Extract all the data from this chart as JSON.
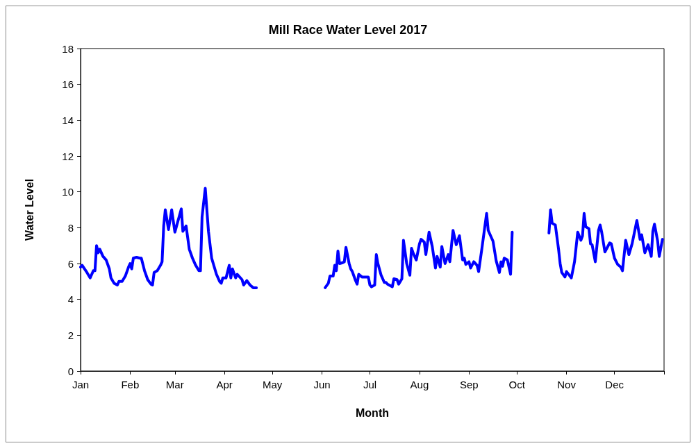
{
  "chart_data": {
    "type": "line",
    "title": "Mill Race Water Level 2017",
    "xlabel": "Month",
    "ylabel": "Water Level",
    "x": [
      "2017-01-01",
      "2017-01-02",
      "2017-01-05",
      "2017-01-07",
      "2017-01-08",
      "2017-01-09",
      "2017-01-10",
      "2017-01-11",
      "2017-01-12",
      "2017-01-13",
      "2017-01-15",
      "2017-01-17",
      "2017-01-19",
      "2017-01-20",
      "2017-01-22",
      "2017-01-24",
      "2017-01-25",
      "2017-01-27",
      "2017-01-29",
      "2017-01-31",
      "2017-02-01",
      "2017-02-02",
      "2017-02-03",
      "2017-02-05",
      "2017-02-07",
      "2017-02-08",
      "2017-02-10",
      "2017-02-12",
      "2017-02-14",
      "2017-02-15",
      "2017-02-16",
      "2017-02-18",
      "2017-02-20",
      "2017-02-21",
      "2017-02-22",
      "2017-02-23",
      "2017-02-25",
      "2017-02-27",
      "2017-03-01",
      "2017-03-05",
      "2017-03-06",
      "2017-03-08",
      "2017-03-10",
      "2017-03-12",
      "2017-03-14",
      "2017-03-16",
      "2017-03-17",
      "2017-03-18",
      "2017-03-20",
      "2017-03-22",
      "2017-03-24",
      "2017-03-27",
      "2017-03-29",
      "2017-03-30",
      "2017-03-31",
      "2017-04-02",
      "2017-04-04",
      "2017-04-05",
      "2017-04-06",
      "2017-04-08",
      "2017-04-09",
      "2017-04-12",
      "2017-04-13",
      "2017-04-15",
      "2017-04-17",
      "2017-04-19",
      "2017-04-21",
      "2017-05-11",
      "2017-06-03",
      "2017-06-05",
      "2017-06-06",
      "2017-06-08",
      "2017-06-09",
      "2017-06-10",
      "2017-06-11",
      "2017-06-12",
      "2017-06-14",
      "2017-06-15",
      "2017-06-16",
      "2017-06-18",
      "2017-06-19",
      "2017-06-20",
      "2017-06-22",
      "2017-06-23",
      "2017-06-24",
      "2017-06-26",
      "2017-06-28",
      "2017-06-30",
      "2017-07-01",
      "2017-07-02",
      "2017-07-04",
      "2017-07-05",
      "2017-07-06",
      "2017-07-08",
      "2017-07-10",
      "2017-07-11",
      "2017-07-12",
      "2017-07-15",
      "2017-07-16",
      "2017-07-18",
      "2017-07-19",
      "2017-07-21",
      "2017-07-22",
      "2017-07-24",
      "2017-07-26",
      "2017-07-27",
      "2017-07-28",
      "2017-07-30",
      "2017-08-01",
      "2017-08-02",
      "2017-08-04",
      "2017-08-05",
      "2017-08-07",
      "2017-08-09",
      "2017-08-11",
      "2017-08-12",
      "2017-08-14",
      "2017-08-15",
      "2017-08-17",
      "2017-08-19",
      "2017-08-20",
      "2017-08-22",
      "2017-08-24",
      "2017-08-26",
      "2017-08-28",
      "2017-08-29",
      "2017-08-30",
      "2017-09-01",
      "2017-09-02",
      "2017-09-04",
      "2017-09-06",
      "2017-09-07",
      "2017-09-09",
      "2017-09-12",
      "2017-09-13",
      "2017-09-16",
      "2017-09-18",
      "2017-09-20",
      "2017-09-21",
      "2017-09-22",
      "2017-09-23",
      "2017-09-25",
      "2017-09-27",
      "2017-09-28",
      "2017-10-08",
      "2017-10-21",
      "2017-10-22",
      "2017-10-23",
      "2017-10-25",
      "2017-10-27",
      "2017-10-28",
      "2017-10-29",
      "2017-10-31",
      "2017-11-01",
      "2017-11-04",
      "2017-11-06",
      "2017-11-08",
      "2017-11-10",
      "2017-11-11",
      "2017-11-12",
      "2017-11-13",
      "2017-11-15",
      "2017-11-16",
      "2017-11-17",
      "2017-11-19",
      "2017-11-21",
      "2017-11-22",
      "2017-11-23",
      "2017-11-25",
      "2017-11-28",
      "2017-11-29",
      "2017-12-01",
      "2017-12-03",
      "2017-12-05",
      "2017-12-06",
      "2017-12-08",
      "2017-12-10",
      "2017-12-12",
      "2017-12-15",
      "2017-12-17",
      "2017-12-18",
      "2017-12-20",
      "2017-12-22",
      "2017-12-24",
      "2017-12-25",
      "2017-12-26",
      "2017-12-28",
      "2017-12-29",
      "2017-12-31"
    ],
    "series": [
      {
        "color": "#0000ff",
        "values": [
          5.8,
          5.9,
          5.5,
          5.2,
          5.4,
          5.6,
          5.6,
          7.0,
          6.6,
          6.8,
          6.4,
          6.2,
          5.7,
          5.2,
          4.9,
          4.8,
          5.0,
          5.0,
          5.3,
          5.8,
          6.0,
          5.7,
          6.3,
          6.35,
          6.3,
          6.3,
          5.6,
          5.1,
          4.85,
          4.8,
          5.5,
          5.6,
          5.9,
          6.1,
          8.1,
          9.0,
          7.9,
          9.0,
          7.75,
          9.05,
          7.8,
          8.1,
          6.8,
          6.3,
          5.9,
          5.6,
          5.6,
          8.6,
          10.2,
          7.8,
          6.3,
          5.4,
          5.0,
          4.9,
          5.2,
          5.2,
          5.9,
          5.2,
          5.7,
          5.2,
          5.4,
          5.1,
          4.8,
          5.05,
          4.8,
          4.65,
          4.65,
          null,
          4.65,
          4.9,
          5.3,
          5.3,
          5.9,
          5.6,
          6.7,
          6.0,
          6.05,
          6.1,
          6.9,
          6.0,
          5.7,
          5.55,
          5.05,
          4.85,
          5.4,
          5.25,
          5.25,
          5.25,
          4.8,
          4.7,
          4.8,
          6.5,
          6.0,
          5.35,
          4.95,
          4.95,
          4.85,
          4.7,
          5.15,
          5.1,
          4.85,
          5.15,
          7.3,
          6.0,
          5.35,
          6.85,
          6.6,
          6.2,
          7.1,
          7.35,
          7.2,
          6.5,
          7.75,
          6.95,
          5.75,
          6.4,
          5.8,
          6.95,
          6.0,
          6.5,
          6.1,
          7.85,
          7.05,
          7.55,
          6.2,
          6.3,
          5.95,
          6.1,
          5.75,
          6.1,
          5.9,
          5.55,
          6.8,
          8.8,
          7.85,
          7.25,
          6.15,
          5.5,
          6.1,
          5.85,
          6.3,
          6.2,
          5.4,
          7.75,
          null,
          7.7,
          9.0,
          8.25,
          8.15,
          6.8,
          6.0,
          5.5,
          5.25,
          5.55,
          5.2,
          6.1,
          7.75,
          7.3,
          7.55,
          8.8,
          8.05,
          7.95,
          7.1,
          7.05,
          6.1,
          7.85,
          8.15,
          7.75,
          6.65,
          7.15,
          7.1,
          6.3,
          5.95,
          5.8,
          5.6,
          7.3,
          6.5,
          7.1,
          8.4,
          7.35,
          7.6,
          6.6,
          7.05,
          6.4,
          7.8,
          8.2,
          7.25,
          6.4,
          7.35
        ]
      }
    ],
    "xlim": [
      "2017-01-01",
      "2018-01-01"
    ],
    "xticks": [
      {
        "value": "2017-01-01",
        "label": "Jan"
      },
      {
        "value": "2017-02-01",
        "label": "Feb"
      },
      {
        "value": "2017-03-01",
        "label": "Mar"
      },
      {
        "value": "2017-04-01",
        "label": "Apr"
      },
      {
        "value": "2017-05-01",
        "label": "May"
      },
      {
        "value": "2017-06-01",
        "label": "Jun"
      },
      {
        "value": "2017-07-01",
        "label": "Jul"
      },
      {
        "value": "2017-08-01",
        "label": "Aug"
      },
      {
        "value": "2017-09-01",
        "label": "Sep"
      },
      {
        "value": "2017-10-01",
        "label": "Oct"
      },
      {
        "value": "2017-11-01",
        "label": "Nov"
      },
      {
        "value": "2017-12-01",
        "label": "Dec"
      },
      {
        "value": "2018-01-01",
        "label": null
      }
    ],
    "ylim": [
      0,
      18
    ],
    "yticks": [
      0,
      2,
      4,
      6,
      8,
      10,
      12,
      14,
      16,
      18
    ],
    "grid": false,
    "marker": "none",
    "line_style": "solid"
  }
}
